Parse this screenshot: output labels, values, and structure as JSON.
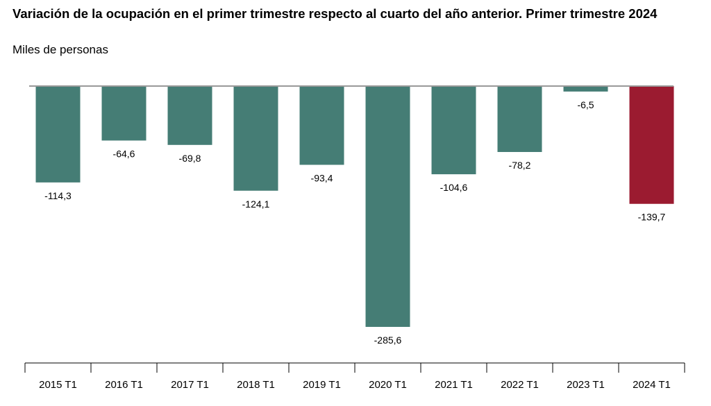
{
  "chart_data": {
    "type": "bar",
    "title": "Variación de la ocupación en el primer trimestre respecto al cuarto del año anterior. Primer trimestre 2024",
    "subtitle": "Miles de personas",
    "categories": [
      "2015 T1",
      "2016 T1",
      "2017 T1",
      "2018 T1",
      "2019 T1",
      "2020 T1",
      "2021 T1",
      "2022 T1",
      "2023 T1",
      "2024 T1"
    ],
    "values": [
      -114.3,
      -64.6,
      -69.8,
      -124.1,
      -93.4,
      -285.6,
      -104.6,
      -78.2,
      -6.5,
      -139.7
    ],
    "value_labels": [
      "-114,3",
      "-64,6",
      "-69,8",
      "-124,1",
      "-93,4",
      "-285,6",
      "-104,6",
      "-78,2",
      "-6,5",
      "-139,7"
    ],
    "colors": {
      "default": "#457D75",
      "highlight": "#9B1B30",
      "baseline": "#999999"
    },
    "highlight_index": 9,
    "ylim": [
      -300,
      0
    ],
    "grid": false,
    "legend": "none"
  }
}
